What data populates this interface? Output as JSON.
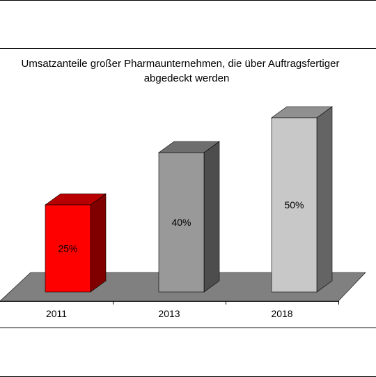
{
  "chart_data": {
    "type": "bar",
    "title_line1": "Umsatzanteile großer Pharmaunternehmen, die über Auftragsfertiger",
    "title_line2": "abgedeckt werden",
    "categories": [
      "2011",
      "2013",
      "2018"
    ],
    "values": [
      25,
      40,
      50
    ],
    "value_labels": [
      "25%",
      "40%",
      "50%"
    ],
    "bar_colors": [
      "#ff0000",
      "#999999",
      "#c8c8c8"
    ],
    "floor_color": "#808080",
    "ylim": [
      0,
      50
    ],
    "grid": false,
    "legend": "none",
    "xlabel": "",
    "ylabel": ""
  }
}
